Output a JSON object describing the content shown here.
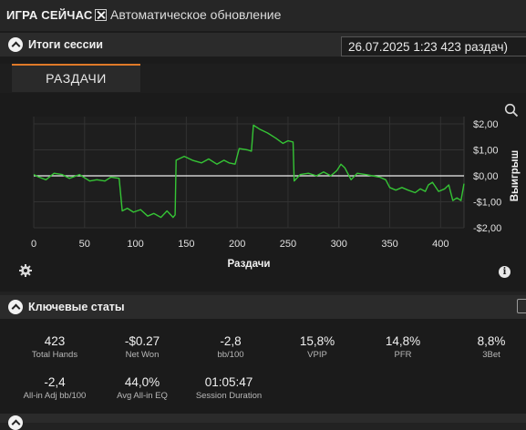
{
  "header": {
    "title": "ИГРА СЕЙЧАС",
    "auto_refresh_label": "Автоматическое обновление",
    "auto_refresh_checked": true
  },
  "session_panel": {
    "title": "Итоги сессии",
    "session_selector_value": "26.07.2025 1:23 423 раздач)",
    "tabs": [
      {
        "label": "РАЗДАЧИ",
        "active": true
      }
    ]
  },
  "icons": {
    "collapse": "chevron-up-icon",
    "settings": "gear-icon",
    "info": "info-icon",
    "zoom": "magnifier-icon",
    "checkbox": "checkbox-checked-icon"
  },
  "chart_data": {
    "type": "line",
    "xlabel": "Раздачи",
    "ylabel": "Выигрыш",
    "xlim": [
      0,
      423
    ],
    "ylim": [
      -2,
      2
    ],
    "x_ticks": [
      0,
      50,
      100,
      150,
      200,
      250,
      300,
      350,
      400
    ],
    "y_ticks": [
      {
        "value": 2,
        "label": "$2,00"
      },
      {
        "value": 1,
        "label": "$1,00"
      },
      {
        "value": 0,
        "label": "$0,00"
      },
      {
        "value": -1,
        "label": "-$1,00"
      },
      {
        "value": -2,
        "label": "-$2,00"
      }
    ],
    "grid": true,
    "zero_line": true,
    "series": [
      {
        "color": "#35c435",
        "points": [
          [
            0,
            0.05
          ],
          [
            5,
            -0.05
          ],
          [
            12,
            -0.15
          ],
          [
            20,
            0.1
          ],
          [
            28,
            0.05
          ],
          [
            35,
            -0.1
          ],
          [
            45,
            0.05
          ],
          [
            55,
            -0.2
          ],
          [
            62,
            -0.15
          ],
          [
            70,
            -0.2
          ],
          [
            76,
            -0.05
          ],
          [
            84,
            -0.1
          ],
          [
            87,
            -1.35
          ],
          [
            92,
            -1.25
          ],
          [
            98,
            -1.4
          ],
          [
            105,
            -1.3
          ],
          [
            112,
            -1.55
          ],
          [
            118,
            -1.45
          ],
          [
            125,
            -1.6
          ],
          [
            131,
            -1.35
          ],
          [
            137,
            -1.6
          ],
          [
            139,
            -1.5
          ],
          [
            140,
            0.6
          ],
          [
            148,
            0.75
          ],
          [
            156,
            0.6
          ],
          [
            165,
            0.5
          ],
          [
            172,
            0.65
          ],
          [
            180,
            0.45
          ],
          [
            187,
            0.6
          ],
          [
            192,
            0.5
          ],
          [
            198,
            0.45
          ],
          [
            202,
            1.05
          ],
          [
            210,
            1.0
          ],
          [
            214,
            0.95
          ],
          [
            216,
            1.95
          ],
          [
            222,
            1.8
          ],
          [
            230,
            1.65
          ],
          [
            238,
            1.45
          ],
          [
            245,
            1.25
          ],
          [
            250,
            1.35
          ],
          [
            255,
            1.3
          ],
          [
            256,
            -0.2
          ],
          [
            262,
            0.05
          ],
          [
            270,
            0.1
          ],
          [
            278,
            0.0
          ],
          [
            285,
            0.15
          ],
          [
            292,
            0.0
          ],
          [
            298,
            0.2
          ],
          [
            302,
            0.45
          ],
          [
            306,
            0.3
          ],
          [
            312,
            -0.15
          ],
          [
            318,
            0.1
          ],
          [
            326,
            0.05
          ],
          [
            333,
            0.0
          ],
          [
            340,
            -0.05
          ],
          [
            346,
            -0.15
          ],
          [
            350,
            -0.45
          ],
          [
            356,
            -0.55
          ],
          [
            362,
            -0.45
          ],
          [
            368,
            -0.55
          ],
          [
            375,
            -0.65
          ],
          [
            380,
            -0.5
          ],
          [
            385,
            -0.6
          ],
          [
            388,
            -0.35
          ],
          [
            392,
            -0.25
          ],
          [
            398,
            -0.6
          ],
          [
            404,
            -0.5
          ],
          [
            408,
            -0.35
          ],
          [
            412,
            -0.95
          ],
          [
            416,
            -0.85
          ],
          [
            420,
            -0.95
          ],
          [
            423,
            -0.3
          ]
        ]
      }
    ]
  },
  "stats_panel": {
    "title": "Ключевые статы",
    "stats": [
      {
        "value": "423",
        "label": "Total Hands"
      },
      {
        "value": "-$0.27",
        "label": "Net Won"
      },
      {
        "value": "-2,8",
        "label": "bb/100"
      },
      {
        "value": "15,8%",
        "label": "VPIP"
      },
      {
        "value": "14,8%",
        "label": "PFR"
      },
      {
        "value": "8,8%",
        "label": "3Bet"
      },
      {
        "value": "-2,4",
        "label": "All-in Adj bb/100"
      },
      {
        "value": "44,0%",
        "label": "Avg All-in EQ"
      },
      {
        "value": "01:05:47",
        "label": "Session Duration"
      }
    ]
  }
}
